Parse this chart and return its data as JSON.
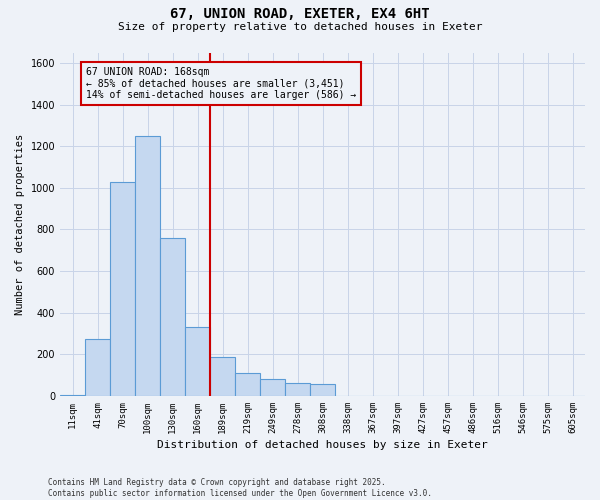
{
  "title_line1": "67, UNION ROAD, EXETER, EX4 6HT",
  "title_line2": "Size of property relative to detached houses in Exeter",
  "xlabel": "Distribution of detached houses by size in Exeter",
  "ylabel": "Number of detached properties",
  "categories": [
    "11sqm",
    "41sqm",
    "70sqm",
    "100sqm",
    "130sqm",
    "160sqm",
    "189sqm",
    "219sqm",
    "249sqm",
    "278sqm",
    "308sqm",
    "338sqm",
    "367sqm",
    "397sqm",
    "427sqm",
    "457sqm",
    "486sqm",
    "516sqm",
    "546sqm",
    "575sqm",
    "605sqm"
  ],
  "values": [
    5,
    275,
    1030,
    1250,
    760,
    330,
    185,
    110,
    80,
    60,
    55,
    0,
    0,
    0,
    0,
    0,
    0,
    0,
    0,
    0,
    0
  ],
  "bar_color": "#c5d8f0",
  "bar_edge_color": "#5b9bd5",
  "marker_line_color": "#cc0000",
  "annotation_text": "67 UNION ROAD: 168sqm\n← 85% of detached houses are smaller (3,451)\n14% of semi-detached houses are larger (586) →",
  "annotation_box_color": "#cc0000",
  "annotation_box_bg": "#eef2f8",
  "ylim": [
    0,
    1650
  ],
  "yticks": [
    0,
    200,
    400,
    600,
    800,
    1000,
    1200,
    1400,
    1600
  ],
  "grid_color": "#c8d4e8",
  "background_color": "#eef2f8",
  "footnote": "Contains HM Land Registry data © Crown copyright and database right 2025.\nContains public sector information licensed under the Open Government Licence v3.0.",
  "title1_fontsize": 10,
  "title2_fontsize": 8,
  "ylabel_fontsize": 7.5,
  "xlabel_fontsize": 8,
  "tick_fontsize": 6.5,
  "annot_fontsize": 7
}
